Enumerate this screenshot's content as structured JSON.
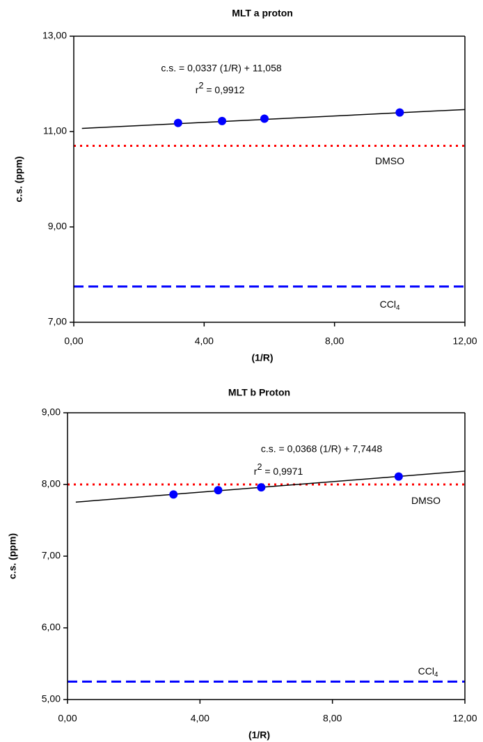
{
  "chart_data": [
    {
      "type": "scatter",
      "title": "MLT a proton",
      "x_label": "(1/R)",
      "y_label": "c.s. (ppm)",
      "xlim": [
        0,
        12
      ],
      "xticks": [
        {
          "value": 0,
          "label": "0,00"
        },
        {
          "value": 4,
          "label": "4,00"
        },
        {
          "value": 8,
          "label": "8,00"
        },
        {
          "value": 12,
          "label": "12,00"
        }
      ],
      "ylim": [
        7,
        13
      ],
      "yticks": [
        {
          "value": 7,
          "label": "7,00"
        },
        {
          "value": 9,
          "label": "9,00"
        },
        {
          "value": 11,
          "label": "11,00"
        },
        {
          "value": 13,
          "label": "13,00"
        }
      ],
      "series": [
        {
          "color": "#0000ff",
          "x": [
            3.2,
            4.55,
            5.85,
            10.0
          ],
          "values": [
            11.18,
            11.22,
            11.27,
            11.4
          ]
        }
      ],
      "trendline": {
        "color": "#000000",
        "x": [
          0.25,
          12
        ],
        "values": [
          11.066,
          11.462
        ]
      },
      "equation": "c.s. = 0,0337 (1/R) + 11,058",
      "r_squared": {
        "base": "r",
        "sup": "2",
        "rest": " = 0,9912"
      },
      "reference_lines": [
        {
          "label": {
            "base": "DMSO"
          },
          "value": 10.7,
          "color": "#ff0000",
          "style": "dotted"
        },
        {
          "label": {
            "base": "CCl",
            "sub": "4"
          },
          "value": 7.75,
          "color": "#0000ff",
          "style": "dashed"
        }
      ]
    },
    {
      "type": "scatter",
      "title": "MLT b Proton",
      "x_label": "(1/R)",
      "y_label": "c.s. (ppm)",
      "xlim": [
        0,
        12
      ],
      "xticks": [
        {
          "value": 0,
          "label": "0,00"
        },
        {
          "value": 4,
          "label": "4,00"
        },
        {
          "value": 8,
          "label": "8,00"
        },
        {
          "value": 12,
          "label": "12,00"
        }
      ],
      "ylim": [
        5,
        9
      ],
      "yticks": [
        {
          "value": 5,
          "label": "5,00"
        },
        {
          "value": 6,
          "label": "6,00"
        },
        {
          "value": 7,
          "label": "7,00"
        },
        {
          "value": 8,
          "label": "8,00"
        },
        {
          "value": 9,
          "label": "9,00"
        }
      ],
      "series": [
        {
          "color": "#0000ff",
          "x": [
            3.2,
            4.55,
            5.85,
            10.0
          ],
          "values": [
            7.86,
            7.92,
            7.96,
            8.11
          ]
        }
      ],
      "trendline": {
        "color": "#000000",
        "x": [
          0.25,
          12
        ],
        "values": [
          7.754,
          8.186
        ]
      },
      "equation": "c.s. = 0,0368 (1/R) + 7,7448",
      "r_squared": {
        "base": "r",
        "sup": "2",
        "rest": " = 0,9971"
      },
      "reference_lines": [
        {
          "label": {
            "base": "DMSO"
          },
          "value": 8.0,
          "color": "#ff0000",
          "style": "dotted"
        },
        {
          "label": {
            "base": "CCl",
            "sub": "4"
          },
          "value": 5.25,
          "color": "#0000ff",
          "style": "dashed"
        }
      ]
    }
  ]
}
